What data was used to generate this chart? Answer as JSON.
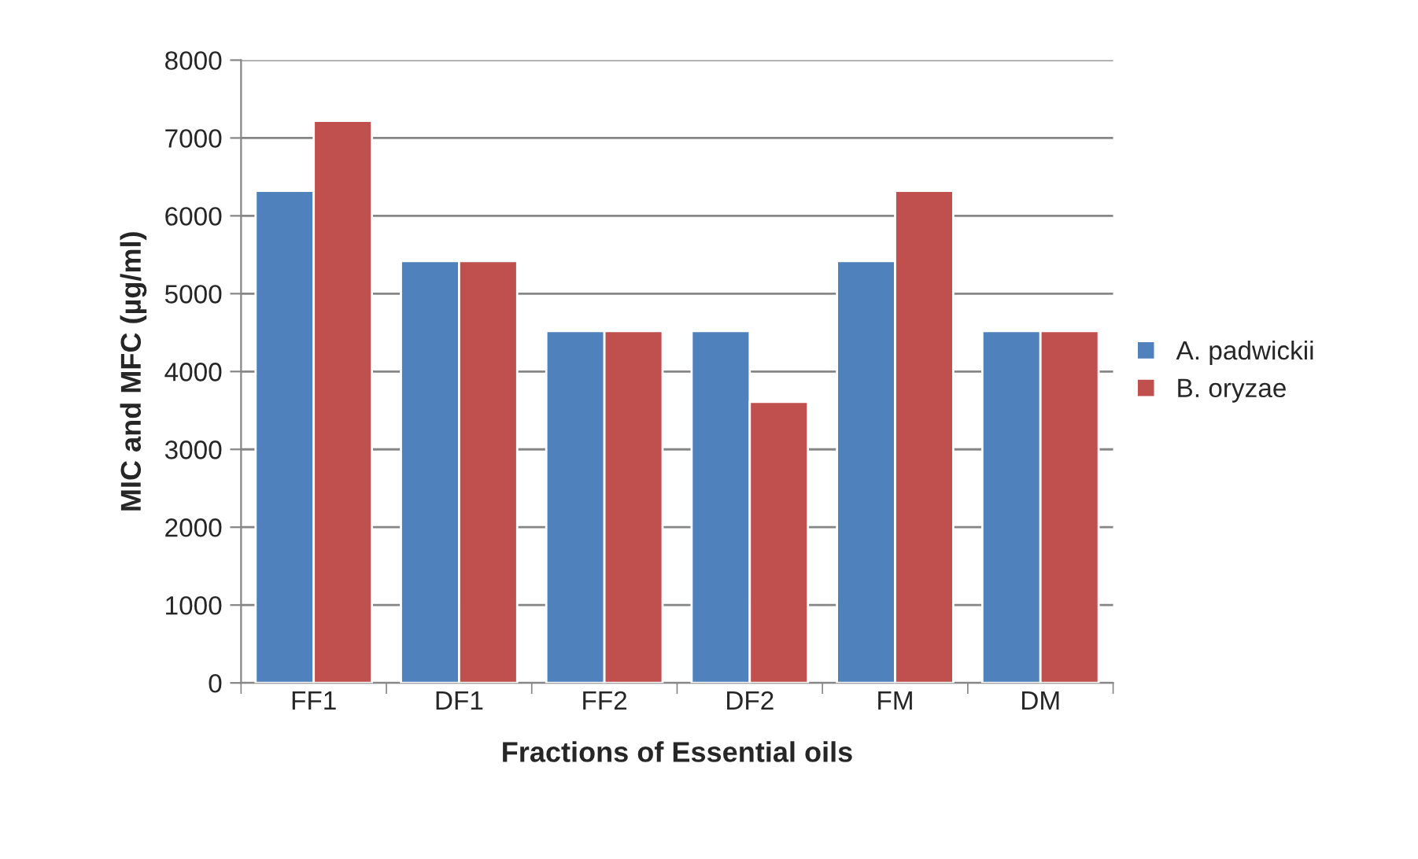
{
  "chart_data": {
    "type": "bar",
    "xlabel": "Fractions of Essential oils",
    "ylabel": "MIC and MFC (µg/ml)",
    "categories": [
      "FF1",
      "DF1",
      "FF2",
      "DF2",
      "FM",
      "DM"
    ],
    "series": [
      {
        "name": "A. padwickii",
        "color": "#4f81bd",
        "values": [
          6320,
          5420,
          4520,
          4520,
          5420,
          4520
        ]
      },
      {
        "name": "B. oryzae",
        "color": "#c0504d",
        "values": [
          7220,
          5420,
          4520,
          3610,
          6320,
          4520
        ]
      }
    ],
    "ylim": [
      0,
      8000
    ],
    "yticks": [
      0,
      1000,
      2000,
      3000,
      4000,
      5000,
      6000,
      7000,
      8000
    ],
    "grid": "y",
    "legend": "right"
  }
}
